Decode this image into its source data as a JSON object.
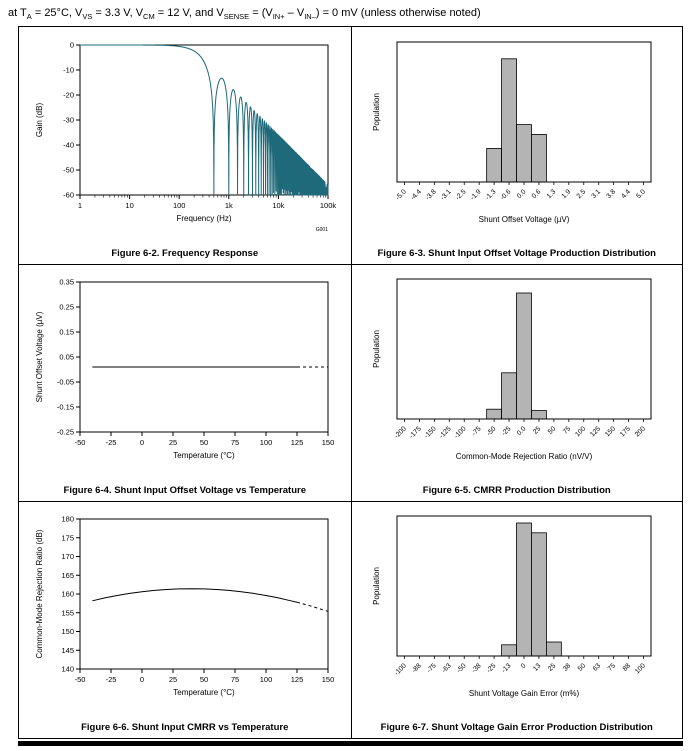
{
  "page": {
    "header_segments": [
      {
        "t": "at T"
      },
      {
        "t": "A",
        "sub": true
      },
      {
        "t": " = 25°C, V"
      },
      {
        "t": "VS",
        "sub": true
      },
      {
        "t": " = 3.3 V, V"
      },
      {
        "t": "CM",
        "sub": true
      },
      {
        "t": " = 12 V, and V"
      },
      {
        "t": "SENSE",
        "sub": true
      },
      {
        "t": " = (V"
      },
      {
        "t": "IN+",
        "sub": true
      },
      {
        "t": " – V"
      },
      {
        "t": "IN–",
        "sub": true
      },
      {
        "t": ") = 0 mV (unless otherwise noted)"
      }
    ]
  },
  "chart_data": [
    {
      "id": "figure-6-2",
      "type": "line",
      "caption": "Figure 6-2. Frequency Response",
      "xlabel": "Frequency (Hz)",
      "ylabel": "Gain (dB)",
      "xscale": "log",
      "xlim": [
        1,
        100000
      ],
      "ylim": [
        -60,
        0
      ],
      "xticks": [
        {
          "v": 1,
          "l": "1"
        },
        {
          "v": 10,
          "l": "10"
        },
        {
          "v": 100,
          "l": "100"
        },
        {
          "v": 1000,
          "l": "1k"
        },
        {
          "v": 10000,
          "l": "10k"
        },
        {
          "v": 100000,
          "l": "100k"
        }
      ],
      "yticks": [
        {
          "v": 0,
          "l": "0"
        },
        {
          "v": -10,
          "l": "-10"
        },
        {
          "v": -20,
          "l": "-20"
        },
        {
          "v": -30,
          "l": "-30"
        },
        {
          "v": -40,
          "l": "-40"
        },
        {
          "v": -50,
          "l": "-50"
        },
        {
          "v": -60,
          "l": "-60"
        }
      ],
      "watermark": "G001",
      "grid": false,
      "series": [
        {
          "name": "gain",
          "color": "#1e6a7a",
          "generator": {
            "kind": "sinc_comb_db",
            "first_null_hz": 500,
            "floor_db": -60,
            "points": 4200
          },
          "description": "0 dB flat to ~200 Hz, sinc-filter comb nulls from 500 Hz, envelope -20 dB/decade to -60 dB at 100 kHz"
        }
      ]
    },
    {
      "id": "figure-6-3",
      "type": "histogram",
      "caption": "Figure 6-3. Shunt Input Offset Voltage Production Distribution",
      "xlabel": "Shunt Offset Voltage (µV)",
      "ylabel": "Population",
      "bar_color": "#b4b4b4",
      "bins": [
        "-5.0",
        "-4.4",
        "-3.8",
        "-3.1",
        "-2.5",
        "-1.9",
        "-1.3",
        "-0.6",
        "0.0",
        "0.6",
        "1.3",
        "1.9",
        "2.5",
        "3.1",
        "3.8",
        "4.4",
        "5.0"
      ],
      "values": [
        0,
        0,
        0,
        0,
        0,
        0,
        0.24,
        0.88,
        0.41,
        0.34,
        0,
        0,
        0,
        0,
        0,
        0,
        0
      ]
    },
    {
      "id": "figure-6-4",
      "type": "line",
      "caption": "Figure 6-4. Shunt Input Offset Voltage vs Temperature",
      "xlabel": "Temperature (°C)",
      "ylabel": "Shunt Offset Voltage (µV)",
      "xlim": [
        -50,
        150
      ],
      "ylim": [
        -0.25,
        0.35
      ],
      "xticks": [
        {
          "v": -50,
          "l": "-50"
        },
        {
          "v": -25,
          "l": "-25"
        },
        {
          "v": 0,
          "l": "0"
        },
        {
          "v": 25,
          "l": "25"
        },
        {
          "v": 50,
          "l": "50"
        },
        {
          "v": 75,
          "l": "75"
        },
        {
          "v": 100,
          "l": "100"
        },
        {
          "v": 125,
          "l": "125"
        },
        {
          "v": 150,
          "l": "150"
        }
      ],
      "yticks": [
        {
          "v": 0.35,
          "l": "0.35"
        },
        {
          "v": 0.25,
          "l": "0.25"
        },
        {
          "v": 0.15,
          "l": "0.15"
        },
        {
          "v": 0.05,
          "l": "0.05"
        },
        {
          "v": -0.05,
          "l": "-0.05"
        },
        {
          "v": -0.15,
          "l": "-0.15"
        },
        {
          "v": -0.25,
          "l": "-0.25"
        }
      ],
      "series": [
        {
          "name": "offset",
          "color": "#000000",
          "solid_until": 125,
          "points": [
            [
              -40,
              0.01
            ],
            [
              -20,
              0.01
            ],
            [
              0,
              0.01
            ],
            [
              25,
              0.01
            ],
            [
              50,
              0.01
            ],
            [
              75,
              0.01
            ],
            [
              100,
              0.01
            ],
            [
              125,
              0.01
            ],
            [
              130,
              0.01
            ],
            [
              140,
              0.01
            ],
            [
              150,
              0.01
            ]
          ]
        }
      ]
    },
    {
      "id": "figure-6-5",
      "type": "histogram",
      "caption": "Figure 6-5. CMRR Production Distribution",
      "xlabel": "Common-Mode Rejection Ratio (nV/V)",
      "ylabel": "Population",
      "bar_color": "#b4b4b4",
      "bins": [
        "-200",
        "-175",
        "-150",
        "-125",
        "-100",
        "-75",
        "-50",
        "-25",
        "0.0",
        "25",
        "50",
        "75",
        "100",
        "125",
        "150",
        "175",
        "200"
      ],
      "values": [
        0,
        0,
        0,
        0,
        0,
        0,
        0.07,
        0.33,
        0.9,
        0.06,
        0,
        0,
        0,
        0,
        0,
        0,
        0
      ]
    },
    {
      "id": "figure-6-6",
      "type": "line",
      "caption": "Figure 6-6. Shunt Input CMRR vs Temperature",
      "xlabel": "Temperature (°C)",
      "ylabel": "Common-Mode Rejection Ratio (dB)",
      "xlim": [
        -50,
        150
      ],
      "ylim": [
        140,
        180
      ],
      "xticks": [
        {
          "v": -50,
          "l": "-50"
        },
        {
          "v": -25,
          "l": "-25"
        },
        {
          "v": 0,
          "l": "0"
        },
        {
          "v": 25,
          "l": "25"
        },
        {
          "v": 50,
          "l": "50"
        },
        {
          "v": 75,
          "l": "75"
        },
        {
          "v": 100,
          "l": "100"
        },
        {
          "v": 125,
          "l": "125"
        },
        {
          "v": 150,
          "l": "150"
        }
      ],
      "yticks": [
        {
          "v": 140,
          "l": "140"
        },
        {
          "v": 145,
          "l": "145"
        },
        {
          "v": 150,
          "l": "150"
        },
        {
          "v": 155,
          "l": "155"
        },
        {
          "v": 160,
          "l": "160"
        },
        {
          "v": 165,
          "l": "165"
        },
        {
          "v": 170,
          "l": "170"
        },
        {
          "v": 175,
          "l": "175"
        },
        {
          "v": 180,
          "l": "180"
        }
      ],
      "series": [
        {
          "name": "cmrr",
          "color": "#000000",
          "solid_until": 125,
          "points": [
            [
              -40,
              158.2
            ],
            [
              -30,
              158.95
            ],
            [
              -20,
              159.6
            ],
            [
              -10,
              160.15
            ],
            [
              0,
              160.6
            ],
            [
              10,
              160.95
            ],
            [
              20,
              161.2
            ],
            [
              30,
              161.35
            ],
            [
              40,
              161.4
            ],
            [
              50,
              161.35
            ],
            [
              60,
              161.2
            ],
            [
              70,
              160.95
            ],
            [
              80,
              160.6
            ],
            [
              90,
              160.15
            ],
            [
              100,
              159.6
            ],
            [
              110,
              158.95
            ],
            [
              120,
              158.2
            ],
            [
              125,
              157.8
            ],
            [
              130,
              157.35
            ],
            [
              140,
              156.4
            ],
            [
              150,
              155.35
            ]
          ]
        }
      ]
    },
    {
      "id": "figure-6-7",
      "type": "histogram",
      "caption": "Figure 6-7. Shunt Voltage Gain Error Production Distribution",
      "xlabel": "Shunt Voltage Gain Error (m%)",
      "ylabel": "Population",
      "bar_color": "#b4b4b4",
      "bins": [
        "-100",
        "-88",
        "-75",
        "-63",
        "-50",
        "-38",
        "-25",
        "-13",
        "0",
        "13",
        "25",
        "38",
        "50",
        "63",
        "75",
        "88",
        "100"
      ],
      "values": [
        0,
        0,
        0,
        0,
        0,
        0,
        0,
        0.08,
        0.95,
        0.88,
        0.1,
        0,
        0,
        0,
        0,
        0,
        0
      ]
    }
  ]
}
